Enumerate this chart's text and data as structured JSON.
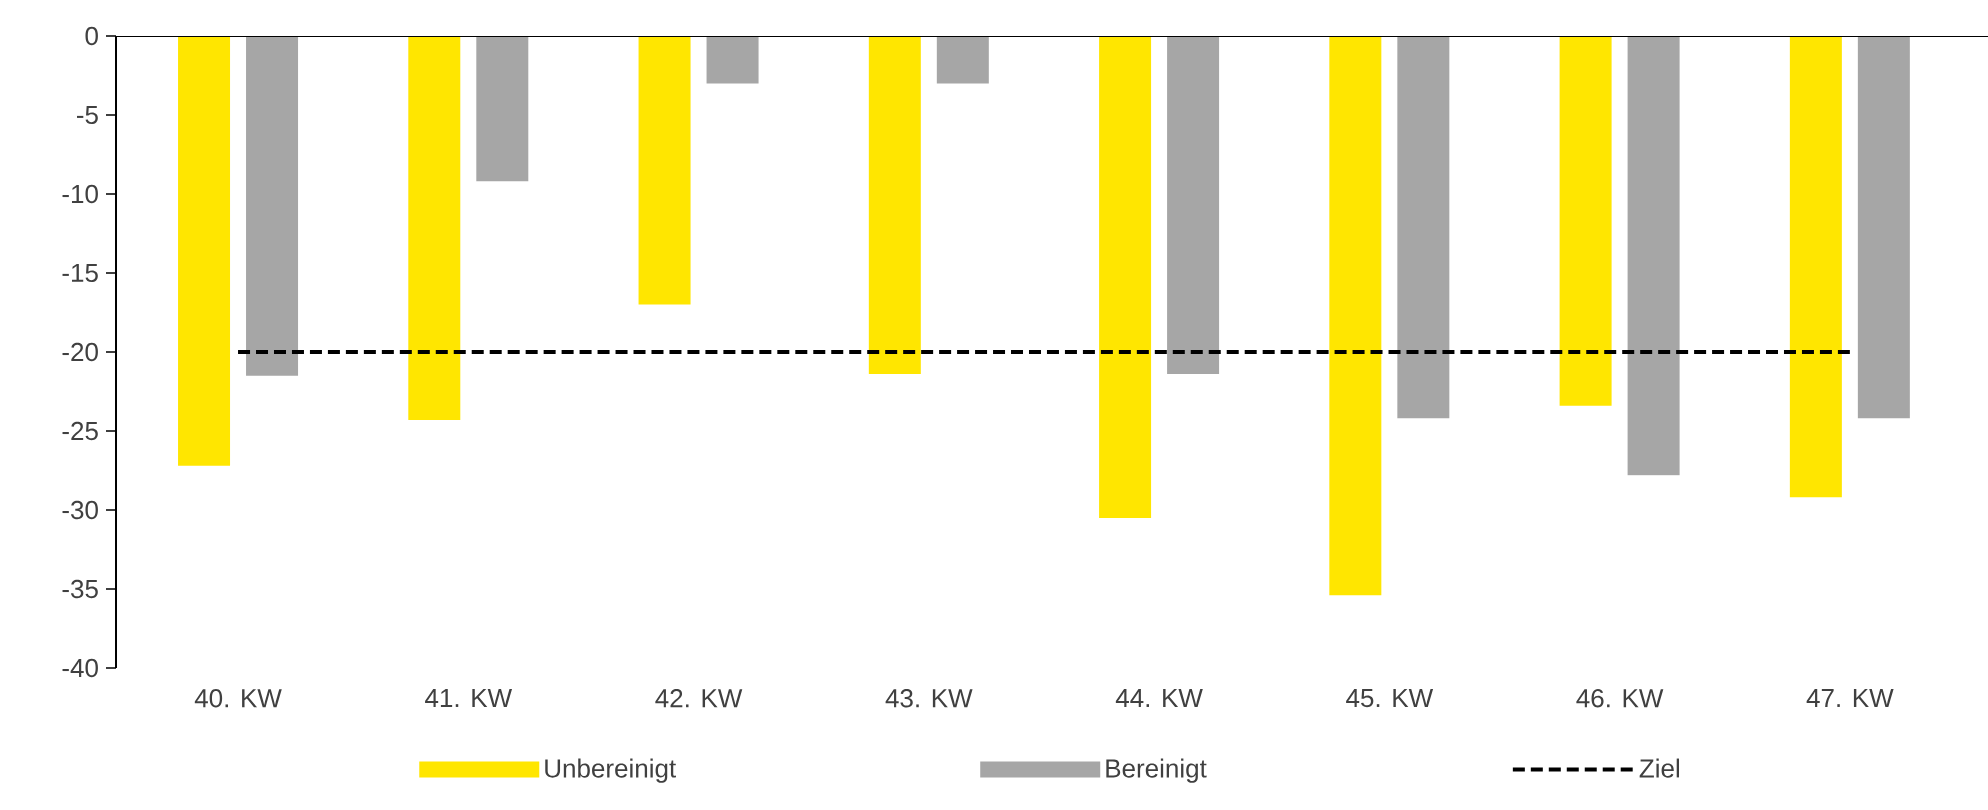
{
  "chart_data": {
    "type": "bar",
    "categories": [
      "40. KW",
      "41. KW",
      "42. KW",
      "43. KW",
      "44. KW",
      "45. KW",
      "46. KW",
      "47. KW"
    ],
    "series": [
      {
        "name": "Unbereinigt",
        "color": "#ffe600",
        "values": [
          -27.2,
          -24.3,
          -17.0,
          -21.4,
          -30.5,
          -35.4,
          -23.4,
          -29.2
        ]
      },
      {
        "name": "Bereinigt",
        "color": "#a6a6a6",
        "values": [
          -21.5,
          -9.2,
          -3.0,
          -3.0,
          -21.4,
          -24.2,
          -27.8,
          -24.2
        ]
      },
      {
        "name": "Ziel",
        "type": "line",
        "line_style": "dashed",
        "color": "#000000",
        "values": [
          -20,
          -20,
          -20,
          -20,
          -20,
          -20,
          -20,
          -20
        ]
      }
    ],
    "ylim": [
      -40,
      0
    ],
    "yticks": [
      -40,
      -35,
      -30,
      -25,
      -20,
      -15,
      -10,
      -5,
      0
    ],
    "grid": false,
    "legend": "bottom"
  }
}
